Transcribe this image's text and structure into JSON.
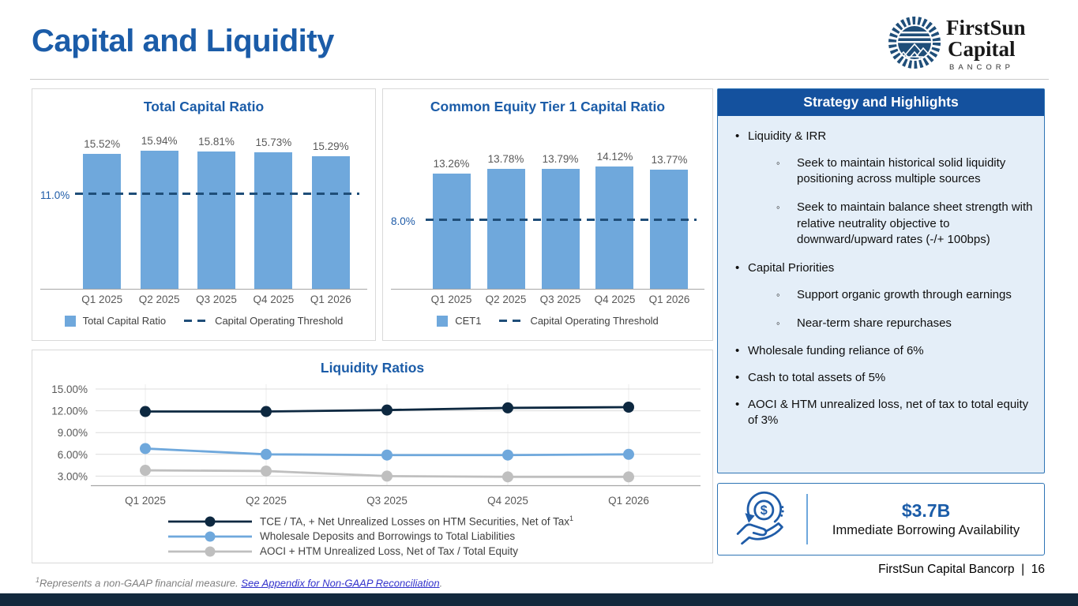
{
  "slide": {
    "title": "Capital and Liquidity",
    "page_footer": "FirstSun Capital Bancorp",
    "footer_separator": "|",
    "page_number": "16"
  },
  "logo": {
    "line1": "FirstSun",
    "line2": "Capital",
    "line3": "BANCORP"
  },
  "colors": {
    "accent_blue": "#1B5CA8",
    "bar": "#6FA8DC",
    "threshold": "#1F4E79",
    "series": [
      "#0D2840",
      "#6FA8DC",
      "#BFBFBF"
    ],
    "panel_header": "#14519E",
    "panel_body": "#E4EEF8",
    "panel_border": "#2E74B5",
    "bottom_bar": "#13293D",
    "link": "#3333CC"
  },
  "chart_data": [
    {
      "type": "bar",
      "title": "Total Capital Ratio",
      "categories": [
        "Q1 2025",
        "Q2 2025",
        "Q3 2025",
        "Q4 2025",
        "Q1 2026"
      ],
      "values": [
        15.52,
        15.94,
        15.81,
        15.73,
        15.29
      ],
      "labels": [
        "15.52%",
        "15.94%",
        "15.81%",
        "15.73%",
        "15.29%"
      ],
      "threshold": {
        "value": 11.0,
        "label": "11.0%"
      },
      "legend": [
        {
          "type": "square",
          "label": "Total Capital Ratio"
        },
        {
          "type": "dash",
          "label": "Capital Operating Threshold"
        }
      ],
      "ylim": [
        0,
        19.5
      ],
      "grid": false
    },
    {
      "type": "bar",
      "title": "Common Equity Tier 1 Capital Ratio",
      "categories": [
        "Q1 2025",
        "Q2 2025",
        "Q3 2025",
        "Q4 2025",
        "Q1 2026"
      ],
      "values": [
        13.26,
        13.78,
        13.79,
        14.12,
        13.77
      ],
      "labels": [
        "13.26%",
        "13.78%",
        "13.79%",
        "14.12%",
        "13.77%"
      ],
      "threshold": {
        "value": 8.0,
        "label": "8.0%"
      },
      "legend": [
        {
          "type": "square",
          "label": "CET1"
        },
        {
          "type": "dash",
          "label": "Capital Operating Threshold"
        }
      ],
      "ylim": [
        0,
        19.5
      ],
      "grid": false
    },
    {
      "type": "line",
      "title": "Liquidity Ratios",
      "x": [
        "Q1 2025",
        "Q2 2025",
        "Q3 2025",
        "Q4 2025",
        "Q1 2026"
      ],
      "yticks": [
        {
          "value": 15,
          "label": "15.00%"
        },
        {
          "value": 12,
          "label": "12.00%"
        },
        {
          "value": 9,
          "label": "9.00%"
        },
        {
          "value": 6,
          "label": "6.00%"
        },
        {
          "value": 3,
          "label": "3.00%"
        }
      ],
      "series": [
        {
          "name": "TCE /  TA, + Net Unrealized Losses on HTM Securities, Net of Tax",
          "name_sup": "1",
          "values": [
            11.9,
            11.9,
            12.1,
            12.4,
            12.5
          ]
        },
        {
          "name": "Wholesale Deposits and Borrowings to Total Liabilities",
          "name_sup": "",
          "values": [
            6.8,
            6.0,
            5.9,
            5.9,
            6.0
          ]
        },
        {
          "name": "AOCI + HTM Unrealized Loss, Net of Tax / Total Equity",
          "name_sup": "",
          "values": [
            3.8,
            3.7,
            3.0,
            2.9,
            2.9
          ]
        }
      ],
      "ylim": [
        1.5,
        16
      ],
      "grid": true,
      "legend_position": "bottom-left"
    }
  ],
  "strategy": {
    "header": "Strategy and Highlights",
    "items": [
      {
        "level": 1,
        "text": "Liquidity & IRR"
      },
      {
        "level": 2,
        "text": "Seek to maintain historical solid liquidity positioning across multiple sources"
      },
      {
        "level": 2,
        "text": "Seek to maintain balance sheet strength with relative neutrality objective to downward/upward rates (-/+ 100bps)"
      },
      {
        "level": 1,
        "text": "Capital Priorities"
      },
      {
        "level": 2,
        "text": "Support organic growth through earnings"
      },
      {
        "level": 2,
        "text": "Near-term share repurchases"
      },
      {
        "level": 1,
        "text": "Wholesale funding reliance of 6%"
      },
      {
        "level": 1,
        "text": "Cash to total assets of 5%"
      },
      {
        "level": 1,
        "text": "AOCI & HTM unrealized loss, net of tax to total equity of 3%"
      }
    ]
  },
  "borrowing": {
    "value": "$3.7B",
    "label": "Immediate Borrowing Availability",
    "icon": "hand-coin-refresh-icon"
  },
  "footnote": {
    "sup": "1",
    "text": "Represents a non-GAAP financial measure. ",
    "link": "See Appendix for Non-GAAP Reconciliation",
    "suffix": "."
  }
}
